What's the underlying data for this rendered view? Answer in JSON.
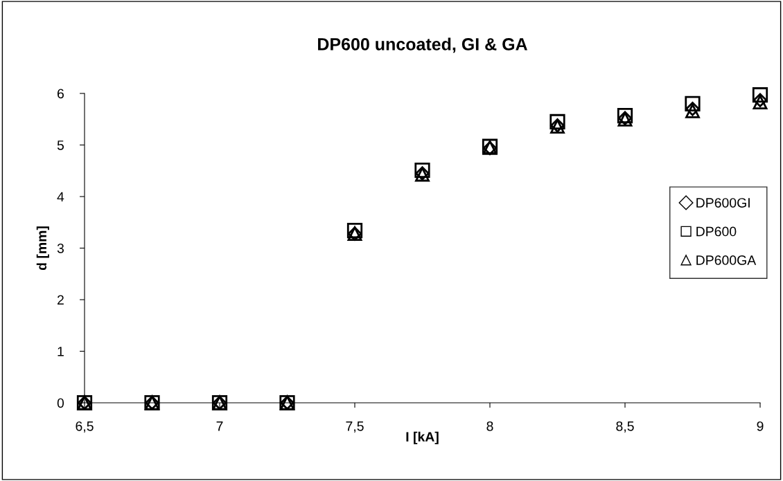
{
  "chart_data": {
    "type": "scatter",
    "title": "DP600 uncoated, GI & GA",
    "xlabel": "I [kA]",
    "ylabel": "d [mm]",
    "x": [
      6.5,
      6.75,
      7,
      7.25,
      7.5,
      7.75,
      8,
      8.25,
      8.5,
      8.75,
      9
    ],
    "series": [
      {
        "name": "DP600GI",
        "color": "#000000",
        "marker": "diamond",
        "values": [
          0,
          0,
          0,
          0,
          3.28,
          4.45,
          4.94,
          5.38,
          5.52,
          5.7,
          5.87
        ]
      },
      {
        "name": "DP600",
        "color": "#000000",
        "marker": "square",
        "values": [
          0,
          0,
          0,
          0,
          3.34,
          4.51,
          4.97,
          5.45,
          5.57,
          5.8,
          5.97
        ]
      },
      {
        "name": "DP600GA",
        "color": "#000000",
        "marker": "triangle",
        "values": [
          0,
          0,
          0,
          0,
          3.28,
          4.43,
          4.95,
          5.36,
          5.5,
          5.66,
          5.83
        ]
      }
    ],
    "xlim": [
      6.5,
      9
    ],
    "xticks": [
      {
        "value": 6.5,
        "label": "6,5"
      },
      7,
      {
        "value": 7.5,
        "label": "7,5"
      },
      8,
      {
        "value": 8.5,
        "label": "8,5"
      },
      9
    ],
    "ylim": [
      0,
      6
    ],
    "yticks": [
      0,
      1,
      2,
      3,
      4,
      5,
      6
    ],
    "grid": false,
    "legend": "right"
  }
}
